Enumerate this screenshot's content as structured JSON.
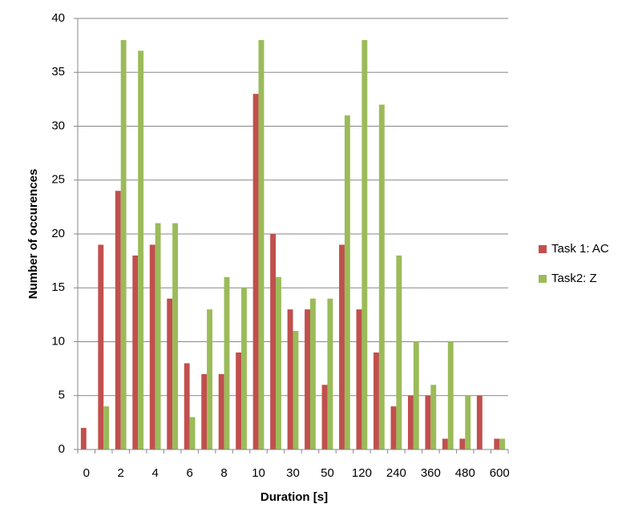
{
  "chart_data": {
    "type": "bar",
    "x_label": "Duration [s]",
    "y_label": "Number of occurences",
    "categories": [
      "0",
      null,
      "2",
      null,
      "4",
      null,
      "6",
      null,
      "8",
      null,
      "10",
      null,
      "30",
      null,
      "50",
      null,
      "120",
      null,
      "240",
      null,
      "360",
      null,
      "480",
      null,
      "600"
    ],
    "series": [
      {
        "name": "Task 1: AC",
        "color": "#c0504d",
        "values": [
          2,
          19,
          24,
          18,
          19,
          14,
          8,
          7,
          7,
          9,
          33,
          20,
          13,
          13,
          6,
          19,
          13,
          9,
          4,
          5,
          5,
          1,
          1,
          5,
          1
        ]
      },
      {
        "name": "Task2: Z",
        "color": "#9bbb59",
        "values": [
          0,
          4,
          38,
          37,
          21,
          21,
          3,
          13,
          16,
          15,
          38,
          16,
          11,
          14,
          14,
          31,
          38,
          32,
          18,
          10,
          6,
          10,
          5,
          0,
          1
        ]
      }
    ],
    "ylim": [
      0,
      40
    ],
    "yticks": [
      0,
      5,
      10,
      15,
      20,
      25,
      30,
      35,
      40
    ],
    "grid": true,
    "legend": "right"
  }
}
